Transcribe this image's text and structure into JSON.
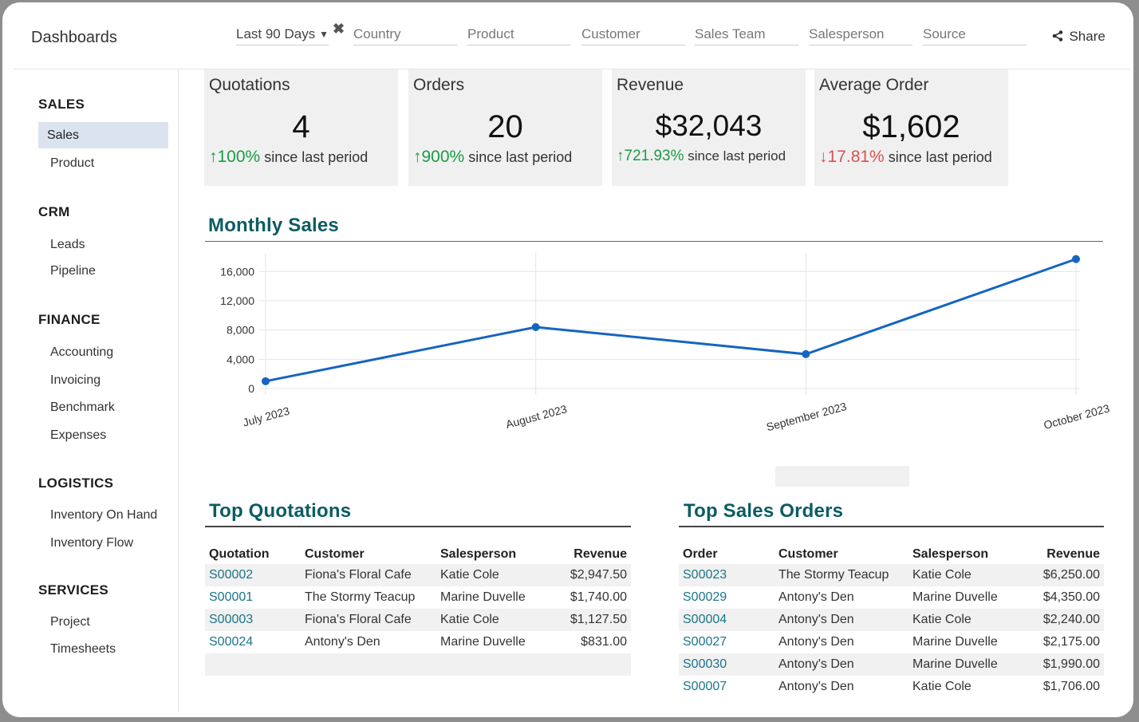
{
  "app": {
    "title": "Dashboards",
    "share_label": "Share"
  },
  "filters": {
    "period": "Last 90 Days",
    "country": "Country",
    "product": "Product",
    "customer": "Customer",
    "sales_team": "Sales Team",
    "salesperson": "Salesperson",
    "source": "Source"
  },
  "sidebar": {
    "sections": [
      {
        "title": "SALES",
        "items": [
          "Sales",
          "Product"
        ]
      },
      {
        "title": "CRM",
        "items": [
          "Leads",
          "Pipeline"
        ]
      },
      {
        "title": "FINANCE",
        "items": [
          "Accounting",
          "Invoicing",
          "Benchmark",
          "Expenses"
        ]
      },
      {
        "title": "LOGISTICS",
        "items": [
          "Inventory On Hand",
          "Inventory Flow"
        ]
      },
      {
        "title": "SERVICES",
        "items": [
          "Project",
          "Timesheets"
        ]
      }
    ],
    "active": "Sales"
  },
  "kpis": [
    {
      "label": "Quotations",
      "value": "4",
      "direction": "up",
      "delta": "100%",
      "suffix": "since last period"
    },
    {
      "label": "Orders",
      "value": "20",
      "direction": "up",
      "delta": "900%",
      "suffix": "since last period"
    },
    {
      "label": "Revenue",
      "value": "$32,043",
      "direction": "up",
      "delta": "721.93%",
      "suffix": "since last period"
    },
    {
      "label": "Average Order",
      "value": "$1,602",
      "direction": "down",
      "delta": "17.81%",
      "suffix": "since last period"
    }
  ],
  "monthly_sales": {
    "title": "Monthly Sales"
  },
  "chart_data": {
    "type": "line",
    "title": "Monthly Sales",
    "categories": [
      "July 2023",
      "August 2023",
      "September 2023",
      "October 2023"
    ],
    "series": [
      {
        "name": "Sales",
        "values": [
          1000,
          8400,
          4700,
          17700
        ]
      }
    ],
    "yticks": [
      "0",
      "4,000",
      "8,000",
      "12,000",
      "16,000"
    ],
    "ylim": [
      0,
      18000
    ],
    "line_color": "#1565c0"
  },
  "top_quotations": {
    "title": "Top Quotations",
    "columns": [
      "Quotation",
      "Customer",
      "Salesperson",
      "Revenue"
    ],
    "rows": [
      [
        "S00002",
        "Fiona's Floral Cafe",
        "Katie Cole",
        "$2,947.50"
      ],
      [
        "S00001",
        "The Stormy Teacup",
        "Marine Duvelle",
        "$1,740.00"
      ],
      [
        "S00003",
        "Fiona's Floral Cafe",
        "Katie Cole",
        "$1,127.50"
      ],
      [
        "S00024",
        "Antony's Den",
        "Marine Duvelle",
        "$831.00"
      ]
    ]
  },
  "top_orders": {
    "title": "Top Sales Orders",
    "columns": [
      "Order",
      "Customer",
      "Salesperson",
      "Revenue"
    ],
    "rows": [
      [
        "S00023",
        "The Stormy Teacup",
        "Katie Cole",
        "$6,250.00"
      ],
      [
        "S00029",
        "Antony's Den",
        "Marine Duvelle",
        "$4,350.00"
      ],
      [
        "S00004",
        "Antony's Den",
        "Katie Cole",
        "$2,240.00"
      ],
      [
        "S00027",
        "Antony's Den",
        "Marine Duvelle",
        "$2,175.00"
      ],
      [
        "S00030",
        "Antony's Den",
        "Marine Duvelle",
        "$1,990.00"
      ],
      [
        "S00007",
        "Antony's Den",
        "Katie Cole",
        "$1,706.00"
      ]
    ]
  }
}
